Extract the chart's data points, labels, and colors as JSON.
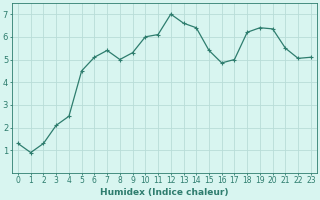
{
  "x": [
    0,
    1,
    2,
    3,
    4,
    5,
    6,
    7,
    8,
    9,
    10,
    11,
    12,
    13,
    14,
    15,
    16,
    17,
    18,
    19,
    20,
    21,
    22,
    23
  ],
  "y": [
    1.3,
    0.9,
    1.3,
    2.1,
    2.5,
    4.5,
    5.1,
    5.4,
    5.0,
    5.3,
    6.0,
    6.1,
    7.0,
    6.6,
    6.4,
    5.4,
    4.85,
    5.0,
    6.2,
    6.4,
    6.35,
    5.5,
    5.05,
    5.1
  ],
  "xlabel": "Humidex (Indice chaleur)",
  "line_color": "#2e7d6e",
  "marker": "+",
  "bg_color": "#d8f5f0",
  "grid_color": "#b8ddd8",
  "ylim": [
    0,
    7.5
  ],
  "xlim": [
    -0.5,
    23.5
  ],
  "yticks": [
    1,
    2,
    3,
    4,
    5,
    6,
    7
  ],
  "xticks": [
    0,
    1,
    2,
    3,
    4,
    5,
    6,
    7,
    8,
    9,
    10,
    11,
    12,
    13,
    14,
    15,
    16,
    17,
    18,
    19,
    20,
    21,
    22,
    23
  ],
  "tick_fontsize": 5.5,
  "xlabel_fontsize": 6.5,
  "linewidth": 0.9,
  "markersize": 3.0,
  "markeredgewidth": 0.8
}
